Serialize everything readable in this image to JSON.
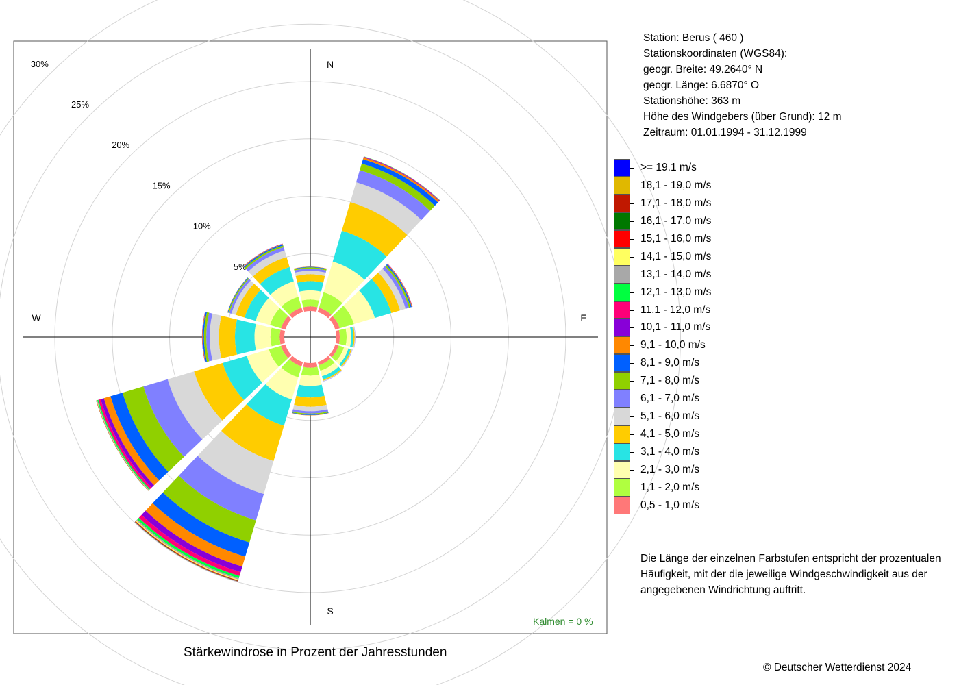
{
  "station": {
    "line1": "Station:  Berus  ( 460 )",
    "line2": "Stationskoordinaten (WGS84):",
    "line3": "geogr. Breite: 49.2640° N",
    "line4": "geogr. Länge:   6.6870° O",
    "line5": "Stationshöhe: 363 m",
    "line6": "Höhe des Windgebers (über Grund): 12 m",
    "line7": "Zeitraum: 01.01.1994 - 31.12.1999"
  },
  "note": {
    "line1": "Die Länge der einzelnen Farbstufen entspricht der prozentualen",
    "line2": "Häufigkeit, mit der die jeweilige Windgeschwindigkeit aus der",
    "line3": "angegebenen Windrichtung auftritt."
  },
  "caption": "Stärkewindrose in Prozent der Jahresstunden",
  "copyright": "© Deutscher Wetterdienst  2024",
  "kalmen": "Kalmen  =  0 %",
  "legend": [
    {
      "label": ">= 19.1 m/s",
      "color": "#0000ff"
    },
    {
      "label": "18,1 - 19,0 m/s",
      "color": "#e0b800"
    },
    {
      "label": "17,1 - 18,0 m/s",
      "color": "#c01800"
    },
    {
      "label": "16,1 - 17,0 m/s",
      "color": "#007800"
    },
    {
      "label": "15,1 - 16,0 m/s",
      "color": "#ff0000"
    },
    {
      "label": "14,1 - 15,0 m/s",
      "color": "#ffff60"
    },
    {
      "label": "13,1 - 14,0 m/s",
      "color": "#a8a8a8"
    },
    {
      "label": "12,1 - 13,0 m/s",
      "color": "#00ff40"
    },
    {
      "label": "11,1 - 12,0 m/s",
      "color": "#ff0078"
    },
    {
      "label": "10,1 - 11,0 m/s",
      "color": "#8800d8"
    },
    {
      "label": "9,1 - 10,0 m/s",
      "color": "#ff8800"
    },
    {
      "label": "8,1 - 9,0 m/s",
      "color": "#0060ff"
    },
    {
      "label": "7,1 - 8,0 m/s",
      "color": "#90d000"
    },
    {
      "label": "6,1 - 7,0 m/s",
      "color": "#8080ff"
    },
    {
      "label": "5,1 - 6,0 m/s",
      "color": "#d8d8d8"
    },
    {
      "label": "4,1 - 5,0 m/s",
      "color": "#ffcc00"
    },
    {
      "label": "3,1 - 4,0 m/s",
      "color": "#28e4e4"
    },
    {
      "label": "2,1 - 3,0 m/s",
      "color": "#ffffb0"
    },
    {
      "label": "1,1 - 2,0 m/s",
      "color": "#b0ff40"
    },
    {
      "label": "0,5 - 1,0 m/s",
      "color": "#ff7878"
    }
  ],
  "chart_data": {
    "type": "windrose",
    "unit": "%",
    "rings": [
      5,
      10,
      15,
      20,
      25,
      30
    ],
    "ring_labels": [
      "5%",
      "10%",
      "15%",
      "20%",
      "25%",
      "30%"
    ],
    "directions": {
      "north": "N",
      "east": "E",
      "south": "S",
      "west": "W"
    },
    "sector_directions_deg": [
      0,
      30,
      60,
      90,
      120,
      150,
      180,
      210,
      240,
      270,
      300,
      330
    ],
    "classes_low_to_high": [
      "0,5 - 1,0 m/s",
      "1,1 - 2,0 m/s",
      "2,1 - 3,0 m/s",
      "3,1 - 4,0 m/s",
      "4,1 - 5,0 m/s",
      "5,1 - 6,0 m/s",
      "6,1 - 7,0 m/s",
      "7,1 - 8,0 m/s",
      "8,1 - 9,0 m/s",
      "9,1 - 10,0 m/s",
      "10,1 - 11,0 m/s",
      "11,1 - 12,0 m/s",
      "12,1 - 13,0 m/s",
      "13,1 - 14,0 m/s",
      "14,1 - 15,0 m/s",
      "15,1 - 16,0 m/s",
      "16,1 - 17,0 m/s",
      "17,1 - 18,0 m/s",
      "18,1 - 19,0 m/s",
      ">= 19.1 m/s"
    ],
    "class_colors_low_to_high": [
      "#ff7878",
      "#b0ff40",
      "#ffffb0",
      "#28e4e4",
      "#ffcc00",
      "#d8d8d8",
      "#8080ff",
      "#90d000",
      "#0060ff",
      "#ff8800",
      "#8800d8",
      "#ff0078",
      "#00ff40",
      "#a8a8a8",
      "#ffff60",
      "#ff0000",
      "#007800",
      "#c01800",
      "#e0b800",
      "#0000ff"
    ],
    "sectors": [
      {
        "dir": 0,
        "values": [
          0.4,
          0.6,
          0.8,
          0.8,
          0.6,
          0.3,
          0.2,
          0.1,
          0.05,
          0.02,
          0,
          0,
          0,
          0,
          0,
          0,
          0,
          0,
          0,
          0
        ]
      },
      {
        "dir": 30,
        "values": [
          0.4,
          1.4,
          2.8,
          2.8,
          2.6,
          1.8,
          1.1,
          0.6,
          0.4,
          0.15,
          0.05,
          0.03,
          0.02,
          0.01,
          0,
          0,
          0,
          0,
          0,
          0
        ]
      },
      {
        "dir": 60,
        "values": [
          0.4,
          1.3,
          1.9,
          1.5,
          0.8,
          0.5,
          0.3,
          0.15,
          0.1,
          0.05,
          0.02,
          0.01,
          0,
          0,
          0,
          0,
          0,
          0,
          0,
          0
        ]
      },
      {
        "dir": 90,
        "values": [
          0.3,
          0.6,
          0.4,
          0.2,
          0.1,
          0.05,
          0.02,
          0,
          0,
          0,
          0,
          0,
          0,
          0,
          0,
          0,
          0,
          0,
          0,
          0
        ]
      },
      {
        "dir": 120,
        "values": [
          0.3,
          0.5,
          0.4,
          0.2,
          0.1,
          0.05,
          0.02,
          0,
          0,
          0,
          0,
          0,
          0,
          0,
          0,
          0,
          0,
          0,
          0,
          0
        ]
      },
      {
        "dir": 150,
        "values": [
          0.3,
          0.5,
          0.5,
          0.3,
          0.1,
          0.05,
          0.02,
          0,
          0,
          0,
          0,
          0,
          0,
          0,
          0,
          0,
          0,
          0,
          0,
          0
        ]
      },
      {
        "dir": 180,
        "values": [
          0.4,
          0.7,
          0.9,
          1.0,
          0.8,
          0.4,
          0.2,
          0.1,
          0.05,
          0.02,
          0,
          0,
          0,
          0,
          0,
          0,
          0,
          0,
          0,
          0
        ]
      },
      {
        "dir": 210,
        "values": [
          0.4,
          1.0,
          2.0,
          2.4,
          3.2,
          3.0,
          2.4,
          2.0,
          1.3,
          0.9,
          0.5,
          0.35,
          0.2,
          0.12,
          0.08,
          0.05,
          0.03,
          0.02,
          0.01,
          0.01
        ]
      },
      {
        "dir": 240,
        "values": [
          0.4,
          1.1,
          2.0,
          2.2,
          2.6,
          2.4,
          2.2,
          1.9,
          1.1,
          0.6,
          0.3,
          0.2,
          0.1,
          0.05,
          0.03,
          0.02,
          0.01,
          0,
          0,
          0
        ]
      },
      {
        "dir": 270,
        "values": [
          0.4,
          0.8,
          1.4,
          1.7,
          1.4,
          0.8,
          0.3,
          0.2,
          0.1,
          0.05,
          0.02,
          0,
          0,
          0,
          0,
          0,
          0,
          0,
          0,
          0
        ]
      },
      {
        "dir": 300,
        "values": [
          0.4,
          1.0,
          1.3,
          1.0,
          0.8,
          0.4,
          0.2,
          0.1,
          0.05,
          0.02,
          0,
          0,
          0,
          0,
          0,
          0,
          0,
          0,
          0,
          0
        ]
      },
      {
        "dir": 330,
        "values": [
          0.4,
          1.0,
          1.4,
          1.3,
          0.9,
          0.6,
          0.3,
          0.15,
          0.1,
          0.05,
          0.02,
          0,
          0,
          0,
          0,
          0,
          0,
          0,
          0,
          0
        ]
      }
    ]
  }
}
